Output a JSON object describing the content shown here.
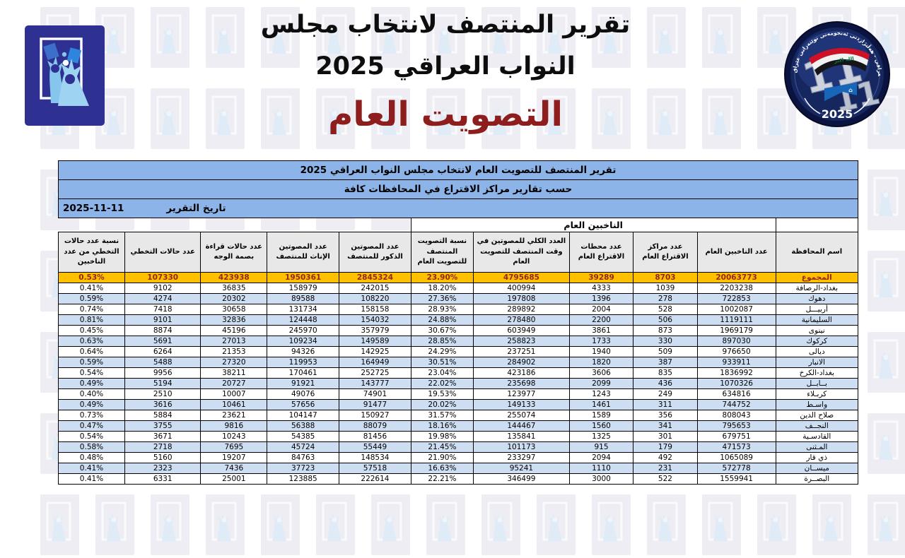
{
  "page": {
    "title_line1": "تقرير المنتصف لانتخاب مجلس",
    "title_line2": "النواب العراقي 2025",
    "subtitle": "التصويت العام"
  },
  "logos": {
    "left_icon": "ihec-ballot-logo",
    "right_icon": "election-11-11-badge",
    "badge_rim_text": "انتخابات مجلس النواب العراقي - هەڵبژاردنی ئەنجومەنی نوێنەرانی عێراق",
    "badge_number_a": "11",
    "badge_number_b": "11",
    "badge_year": "2025"
  },
  "colors": {
    "accent_red": "#8e1d1d",
    "header_blue": "#8db4e8",
    "zebra_blue": "#cdddf2",
    "total_bg": "#ffc000",
    "total_text": "#93271c",
    "header_gray": "#e8e8e8"
  },
  "table": {
    "header1": "تقرير المنتصف للتصويت العام لانتخاب مجلس النواب العراقي 2025",
    "header2": "حسب تقارير مراكز الاقتراع في المحافظات كافة",
    "date_label": "تاريخ التقرير",
    "date_value": "2025-11-11",
    "group_header": "الناخبين العام",
    "columns": [
      "اسم المحافظة",
      "عدد الناخبين العام",
      "عدد مراكز الاقتراع العام",
      "عدد محطات الاقتراع العام",
      "العدد الكلي للمصوتين في وقت المنتصف للتصويت العام",
      "نسبة التصويت المنتصف للتصويت العام",
      "عدد المصوتين الذكور للمنتصف",
      "عدد المصوتين الإناث للمنتصف",
      "عدد حالات قراءة بصمة الوجه",
      "عدد حالات التخطي",
      "نسبة عدد حالات التخطي من عدد الناخبين"
    ],
    "total_row": [
      "المجموع",
      "20063773",
      "8703",
      "39289",
      "4795685",
      "23.90%",
      "2845324",
      "1950361",
      "423938",
      "107330",
      "0.53%"
    ],
    "rows": [
      [
        "بغداد-الرصافة",
        "2203238",
        "1039",
        "4333",
        "400994",
        "18.20%",
        "242015",
        "158979",
        "36835",
        "9102",
        "0.41%"
      ],
      [
        "دهوك",
        "722853",
        "278",
        "1396",
        "197808",
        "27.36%",
        "108220",
        "89588",
        "20302",
        "4274",
        "0.59%"
      ],
      [
        "أربيـــل",
        "1002087",
        "528",
        "2004",
        "289892",
        "28.93%",
        "158158",
        "131734",
        "30658",
        "7418",
        "0.74%"
      ],
      [
        "السليمانية",
        "1119111",
        "506",
        "2200",
        "278480",
        "24.88%",
        "154032",
        "124448",
        "32836",
        "9101",
        "0.81%"
      ],
      [
        "نينوى",
        "1969179",
        "873",
        "3861",
        "603949",
        "30.67%",
        "357979",
        "245970",
        "45196",
        "8874",
        "0.45%"
      ],
      [
        "كركوك",
        "897030",
        "330",
        "1733",
        "258823",
        "28.85%",
        "149589",
        "109234",
        "27013",
        "5691",
        "0.63%"
      ],
      [
        "ديالى",
        "976650",
        "509",
        "1940",
        "237251",
        "24.29%",
        "142925",
        "94326",
        "21353",
        "6264",
        "0.64%"
      ],
      [
        "الانبار",
        "933911",
        "387",
        "1820",
        "284902",
        "30.51%",
        "164949",
        "119953",
        "27320",
        "5488",
        "0.59%"
      ],
      [
        "بغداد-الكرخ",
        "1836992",
        "835",
        "3606",
        "423186",
        "23.04%",
        "252725",
        "170461",
        "38211",
        "9956",
        "0.54%"
      ],
      [
        "بــابــل",
        "1070326",
        "436",
        "2099",
        "235698",
        "22.02%",
        "143777",
        "91921",
        "20727",
        "5194",
        "0.49%"
      ],
      [
        "كربـلاء",
        "634816",
        "249",
        "1243",
        "123977",
        "19.53%",
        "74901",
        "49076",
        "10007",
        "2510",
        "0.40%"
      ],
      [
        "واسـط",
        "744752",
        "311",
        "1461",
        "149133",
        "20.02%",
        "91477",
        "57656",
        "10461",
        "3616",
        "0.49%"
      ],
      [
        "صلاح الدين",
        "808043",
        "356",
        "1589",
        "255074",
        "31.57%",
        "150927",
        "104147",
        "23621",
        "5884",
        "0.73%"
      ],
      [
        "النجــف",
        "795653",
        "341",
        "1560",
        "144467",
        "18.16%",
        "88079",
        "56388",
        "9816",
        "3755",
        "0.47%"
      ],
      [
        "القادسـية",
        "679751",
        "301",
        "1325",
        "135841",
        "19.98%",
        "81456",
        "54385",
        "10243",
        "3671",
        "0.54%"
      ],
      [
        "المـثنى",
        "471573",
        "179",
        "915",
        "101173",
        "21.45%",
        "55449",
        "45724",
        "7695",
        "2718",
        "0.58%"
      ],
      [
        "ذي قار",
        "1065089",
        "492",
        "2094",
        "233297",
        "21.90%",
        "148534",
        "84763",
        "19207",
        "5160",
        "0.48%"
      ],
      [
        "ميســان",
        "572778",
        "231",
        "1110",
        "95241",
        "16.63%",
        "57518",
        "37723",
        "7436",
        "2323",
        "0.41%"
      ],
      [
        "البصــرة",
        "1559941",
        "522",
        "3000",
        "346499",
        "22.21%",
        "222614",
        "123885",
        "25001",
        "6331",
        "0.41%"
      ]
    ]
  }
}
